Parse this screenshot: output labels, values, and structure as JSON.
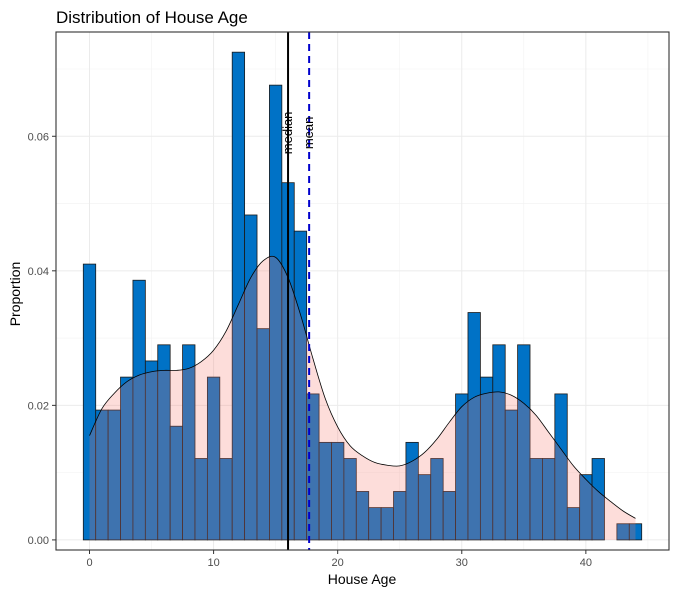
{
  "chart_data": {
    "type": "bar",
    "title": "Distribution of House Age",
    "xlabel": "House Age",
    "ylabel": "Proportion",
    "xlim": [
      -2.7,
      46.7
    ],
    "ylim": [
      -0.0015,
      0.0755
    ],
    "x_ticks": [
      0,
      10,
      20,
      30,
      40
    ],
    "x_tick_labels": [
      "0",
      "10",
      "20",
      "30",
      "40"
    ],
    "y_ticks": [
      0,
      0.02,
      0.04,
      0.06
    ],
    "y_tick_labels": [
      "0.00",
      "0.02",
      "0.04",
      "0.06"
    ],
    "grid": true,
    "histogram": {
      "bin_width": 1,
      "bin_centers": [
        0,
        1,
        2,
        3,
        4,
        5,
        6,
        7,
        8,
        9,
        10,
        11,
        12,
        13,
        14,
        15,
        16,
        17,
        18,
        19,
        20,
        21,
        22,
        23,
        24,
        25,
        26,
        27,
        28,
        29,
        30,
        31,
        32,
        33,
        34,
        35,
        36,
        37,
        38,
        39,
        40,
        41,
        42,
        43,
        44
      ],
      "values": [
        0.041,
        0.0193,
        0.0193,
        0.0242,
        0.0386,
        0.0266,
        0.029,
        0.0169,
        0.029,
        0.0121,
        0.0242,
        0.0121,
        0.0725,
        0.0483,
        0.0314,
        0.0676,
        0.0531,
        0.0459,
        0.0217,
        0.0145,
        0.0145,
        0.0121,
        0.0072,
        0.0048,
        0.0048,
        0.0072,
        0.0145,
        0.0097,
        0.0121,
        0.0072,
        0.0217,
        0.0338,
        0.0242,
        0.029,
        0.0193,
        0.029,
        0.0121,
        0.0121,
        0.0217,
        0.0048,
        0.0097,
        0.0121,
        0,
        0.0024,
        0.0024
      ],
      "fill_color": "#0072c6",
      "edge_color": "#1a1a1a"
    },
    "density": {
      "x": [
        0,
        1,
        2,
        3,
        4,
        5,
        6,
        7,
        8,
        9,
        10,
        11,
        12,
        13,
        14,
        15,
        16,
        17,
        18,
        19,
        20,
        21,
        22,
        23,
        24,
        25,
        26,
        27,
        28,
        29,
        30,
        31,
        32,
        33,
        34,
        35,
        36,
        37,
        38,
        39,
        40,
        41,
        42,
        43,
        44
      ],
      "y": [
        0.0155,
        0.0195,
        0.0218,
        0.0235,
        0.0245,
        0.025,
        0.0252,
        0.0252,
        0.0255,
        0.0265,
        0.0282,
        0.031,
        0.035,
        0.039,
        0.0415,
        0.042,
        0.039,
        0.0335,
        0.027,
        0.021,
        0.0168,
        0.014,
        0.0125,
        0.0115,
        0.0111,
        0.011,
        0.0117,
        0.013,
        0.015,
        0.0175,
        0.0198,
        0.0212,
        0.0218,
        0.022,
        0.0215,
        0.0203,
        0.0185,
        0.016,
        0.0135,
        0.011,
        0.009,
        0.0072,
        0.0057,
        0.0043,
        0.0032
      ],
      "fill_color": "#f8766d",
      "fill_opacity": 0.25,
      "line_color": "#000000"
    },
    "vlines": [
      {
        "label": "median",
        "x": 16,
        "color": "#000000",
        "style": "solid"
      },
      {
        "label": "mean",
        "x": 17.7,
        "color": "#0000cc",
        "style": "dashed"
      }
    ]
  }
}
